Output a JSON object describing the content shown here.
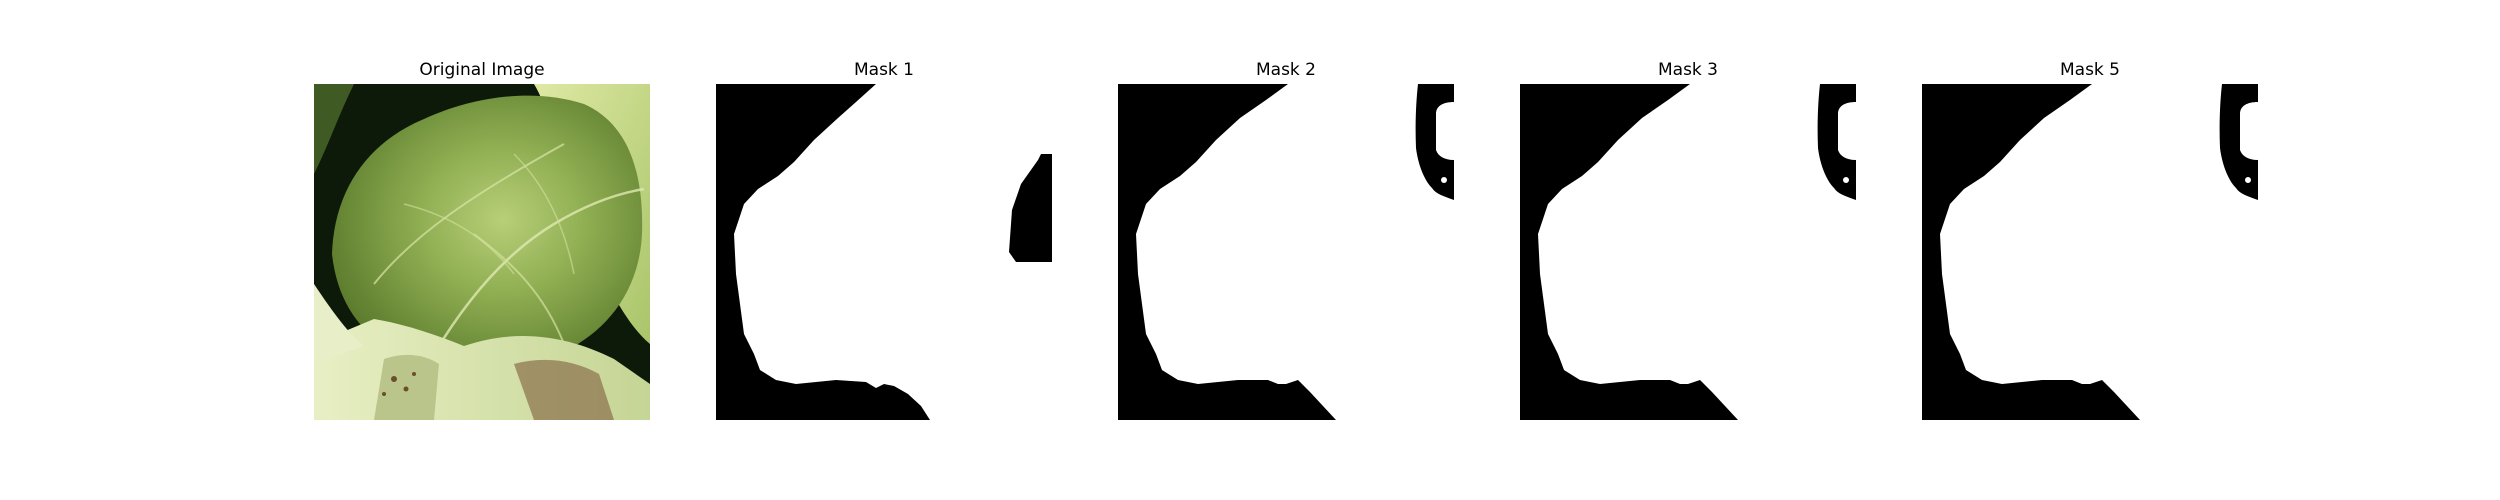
{
  "figure": {
    "panels": [
      {
        "title": "Original Image",
        "kind": "photo",
        "subject": "green leaf close-up"
      },
      {
        "title": "Mask 1",
        "kind": "binary-mask"
      },
      {
        "title": "Mask 2",
        "kind": "binary-mask"
      },
      {
        "title": "Mask 3",
        "kind": "binary-mask"
      },
      {
        "title": "Mask 5",
        "kind": "binary-mask"
      }
    ],
    "colors": {
      "mask_foreground": "#ffffff",
      "mask_background": "#000000",
      "leaf_light": "#c9dc8a",
      "leaf_dark": "#6f8f3c",
      "shadow": "#0d1a0a"
    }
  }
}
